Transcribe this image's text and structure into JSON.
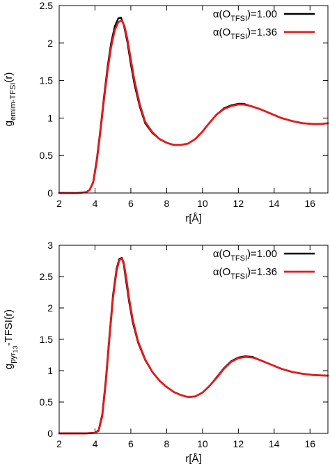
{
  "chart_data": [
    {
      "type": "line",
      "xlabel": "r[Å]",
      "ylabel": {
        "base": "g",
        "sub": "emim-TFSI",
        "tail": "(r)"
      },
      "xlim": [
        2,
        17
      ],
      "ylim": [
        0,
        2.5
      ],
      "xticks": [
        2,
        4,
        6,
        8,
        10,
        12,
        14,
        16
      ],
      "yticks": [
        0,
        0.5,
        1,
        1.5,
        2,
        2.5
      ],
      "legend_position": "top-right",
      "series": [
        {
          "legend": {
            "prefix": "α(O",
            "sub": "TFSI",
            "suffix": ")=1.00"
          },
          "color": "#000000",
          "x": [
            2,
            3,
            3.5,
            3.7,
            3.9,
            4.1,
            4.3,
            4.5,
            4.7,
            4.9,
            5.1,
            5.3,
            5.45,
            5.6,
            5.8,
            6.0,
            6.2,
            6.5,
            6.8,
            7.2,
            7.6,
            8.0,
            8.4,
            8.8,
            9.2,
            9.6,
            10.0,
            10.4,
            10.8,
            11.2,
            11.6,
            12.0,
            12.3,
            12.7,
            13.2,
            13.8,
            14.4,
            15.0,
            15.6,
            16.2,
            16.6,
            17.0
          ],
          "y": [
            0,
            0,
            0.01,
            0.04,
            0.15,
            0.45,
            0.85,
            1.28,
            1.68,
            2.0,
            2.22,
            2.33,
            2.34,
            2.25,
            2.02,
            1.72,
            1.45,
            1.15,
            0.93,
            0.8,
            0.72,
            0.67,
            0.64,
            0.64,
            0.66,
            0.72,
            0.82,
            0.94,
            1.05,
            1.13,
            1.17,
            1.19,
            1.19,
            1.16,
            1.12,
            1.06,
            1.0,
            0.96,
            0.93,
            0.92,
            0.92,
            0.93
          ]
        },
        {
          "legend": {
            "prefix": "α(O",
            "sub": "TFSI",
            "suffix": ")=1.36"
          },
          "color": "#e31a1c",
          "x": [
            2,
            3,
            3.5,
            3.7,
            3.9,
            4.1,
            4.3,
            4.5,
            4.7,
            4.9,
            5.1,
            5.3,
            5.5,
            5.65,
            5.8,
            6.0,
            6.2,
            6.5,
            6.8,
            7.2,
            7.6,
            8.0,
            8.4,
            8.8,
            9.2,
            9.6,
            10.0,
            10.4,
            10.8,
            11.2,
            11.6,
            12.0,
            12.3,
            12.7,
            13.2,
            13.8,
            14.4,
            15.0,
            15.6,
            16.2,
            16.6,
            17.0
          ],
          "y": [
            0,
            0,
            0.01,
            0.04,
            0.14,
            0.42,
            0.82,
            1.24,
            1.63,
            1.95,
            2.17,
            2.28,
            2.3,
            2.22,
            2.06,
            1.78,
            1.5,
            1.18,
            0.95,
            0.81,
            0.72,
            0.67,
            0.64,
            0.64,
            0.66,
            0.72,
            0.82,
            0.94,
            1.05,
            1.12,
            1.16,
            1.18,
            1.18,
            1.16,
            1.12,
            1.06,
            1.0,
            0.96,
            0.93,
            0.92,
            0.92,
            0.93
          ]
        }
      ]
    },
    {
      "type": "line",
      "xlabel": "r[Å]",
      "ylabel": {
        "base": "g",
        "sub": "pyr",
        "subsub": "13",
        "tail": "-TFSI(r)"
      },
      "xlim": [
        2,
        17
      ],
      "ylim": [
        0,
        3
      ],
      "xticks": [
        2,
        4,
        6,
        8,
        10,
        12,
        14,
        16
      ],
      "yticks": [
        0,
        0.5,
        1,
        1.5,
        2,
        2.5,
        3
      ],
      "legend_position": "top-right",
      "series": [
        {
          "legend": {
            "prefix": "α(O",
            "sub": "TFSI",
            "suffix": ")=1.00"
          },
          "color": "#000000",
          "x": [
            2,
            3.5,
            4.0,
            4.2,
            4.4,
            4.6,
            4.8,
            5.0,
            5.2,
            5.35,
            5.5,
            5.6,
            5.75,
            5.9,
            6.1,
            6.4,
            6.8,
            7.2,
            7.6,
            8.0,
            8.4,
            8.8,
            9.2,
            9.6,
            10.0,
            10.4,
            10.8,
            11.2,
            11.6,
            12.0,
            12.4,
            12.8,
            13.2,
            13.8,
            14.4,
            15.0,
            15.6,
            16.2,
            17.0
          ],
          "y": [
            0,
            0,
            0.01,
            0.05,
            0.3,
            0.85,
            1.55,
            2.2,
            2.62,
            2.78,
            2.8,
            2.7,
            2.4,
            2.1,
            1.78,
            1.45,
            1.17,
            0.98,
            0.84,
            0.74,
            0.66,
            0.61,
            0.58,
            0.59,
            0.65,
            0.76,
            0.9,
            1.04,
            1.15,
            1.21,
            1.23,
            1.22,
            1.17,
            1.1,
            1.03,
            0.98,
            0.95,
            0.93,
            0.92
          ]
        },
        {
          "legend": {
            "prefix": "α(O",
            "sub": "TFSI",
            "suffix": ")=1.36"
          },
          "color": "#e31a1c",
          "x": [
            2,
            3.5,
            4.0,
            4.2,
            4.4,
            4.6,
            4.8,
            5.0,
            5.2,
            5.35,
            5.5,
            5.6,
            5.75,
            5.9,
            6.1,
            6.4,
            6.8,
            7.2,
            7.6,
            8.0,
            8.4,
            8.8,
            9.2,
            9.6,
            10.0,
            10.4,
            10.8,
            11.2,
            11.6,
            12.0,
            12.4,
            12.8,
            13.2,
            13.8,
            14.4,
            15.0,
            15.6,
            16.2,
            17.0
          ],
          "y": [
            0,
            0,
            0.01,
            0.04,
            0.27,
            0.8,
            1.5,
            2.15,
            2.58,
            2.76,
            2.79,
            2.73,
            2.47,
            2.15,
            1.82,
            1.47,
            1.18,
            0.98,
            0.84,
            0.74,
            0.66,
            0.61,
            0.58,
            0.59,
            0.65,
            0.76,
            0.89,
            1.03,
            1.14,
            1.2,
            1.22,
            1.21,
            1.17,
            1.1,
            1.03,
            0.98,
            0.95,
            0.93,
            0.92
          ]
        }
      ]
    }
  ]
}
